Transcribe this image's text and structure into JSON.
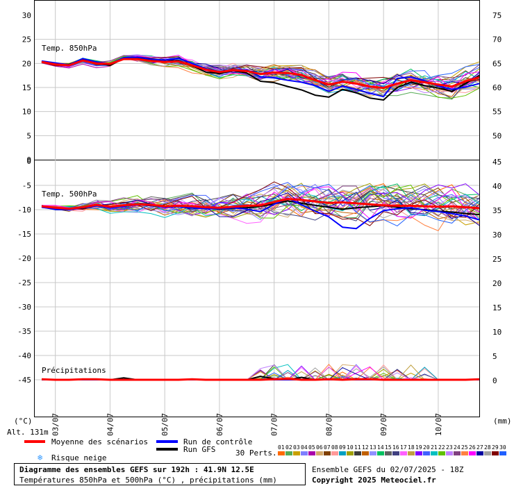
{
  "chart_data": [
    {
      "panel": "850hPa",
      "type": "line",
      "label": "Temp. 850hPa",
      "ylim": [
        0,
        30
      ],
      "yticks_left": [
        "30",
        "25",
        "20",
        "15",
        "10",
        "5",
        "0"
      ],
      "yticks_right": [
        "75",
        "70",
        "65",
        "60",
        "55",
        "50"
      ],
      "x": [
        0,
        6,
        12,
        18,
        24,
        30,
        36,
        42,
        48,
        54,
        60,
        66,
        72,
        78,
        84,
        90,
        96,
        102,
        108,
        114,
        120,
        126,
        132,
        138,
        144,
        150,
        156,
        162,
        168,
        174,
        180,
        186,
        192
      ],
      "series": [
        {
          "name": "Moyenne des scénarios",
          "color": "#ff0000",
          "values": [
            20.3,
            19.8,
            19.6,
            20.6,
            20.0,
            19.9,
            20.9,
            20.9,
            20.5,
            20.3,
            20.4,
            19.6,
            18.7,
            18.2,
            18.6,
            18.4,
            17.8,
            18.1,
            18.0,
            17.6,
            16.5,
            15.6,
            16.2,
            15.8,
            15.2,
            14.9,
            15.8,
            16.5,
            16.1,
            15.6,
            15.2,
            16.3,
            17.1
          ]
        },
        {
          "name": "Run de contrôle",
          "color": "#0000ff",
          "values": [
            20.5,
            20.1,
            19.7,
            21.0,
            20.3,
            19.9,
            21.2,
            21.3,
            20.9,
            20.7,
            21.1,
            20.0,
            18.9,
            18.3,
            18.7,
            18.6,
            17.2,
            17.0,
            16.5,
            16.1,
            15.4,
            14.2,
            15.3,
            14.6,
            13.8,
            13.1,
            16.9,
            17.2,
            16.4,
            15.3,
            14.6,
            15.1,
            15.8
          ]
        },
        {
          "name": "Run GFS",
          "color": "#000000",
          "values": [
            20.4,
            19.9,
            19.8,
            20.8,
            20.1,
            19.6,
            21.0,
            21.1,
            20.7,
            20.4,
            20.6,
            19.5,
            18.2,
            17.9,
            18.5,
            18.0,
            16.3,
            16.0,
            15.2,
            14.5,
            13.4,
            13.0,
            14.6,
            13.9,
            12.8,
            12.4,
            15.0,
            16.1,
            15.4,
            14.9,
            14.2,
            15.8,
            17.5
          ]
        }
      ]
    },
    {
      "panel": "500hPa",
      "type": "line",
      "label": "Temp. 500hPa",
      "ylim": [
        -50,
        0
      ],
      "yticks_left": [
        "0",
        "-5",
        "-10",
        "-15",
        "-20",
        "-25",
        "-30",
        "-35",
        "-40",
        "-45"
      ],
      "yticks_right": [
        "45",
        "40",
        "35",
        "30",
        "25",
        "20",
        "15",
        "10",
        "5",
        "0"
      ],
      "x": [
        0,
        6,
        12,
        18,
        24,
        30,
        36,
        42,
        48,
        54,
        60,
        66,
        72,
        78,
        84,
        90,
        96,
        102,
        108,
        114,
        120,
        126,
        132,
        138,
        144,
        150,
        156,
        162,
        168,
        174,
        180,
        186,
        192
      ],
      "series": [
        {
          "name": "Moyenne des scénarios",
          "color": "#ff0000",
          "values": [
            -9.3,
            -9.6,
            -9.8,
            -9.5,
            -9.0,
            -9.4,
            -9.1,
            -8.9,
            -9.0,
            -9.3,
            -9.2,
            -9.3,
            -9.5,
            -9.6,
            -9.4,
            -9.2,
            -9.1,
            -8.4,
            -7.8,
            -8.0,
            -8.3,
            -8.6,
            -8.5,
            -8.7,
            -8.9,
            -9.1,
            -9.2,
            -9.2,
            -9.3,
            -9.4,
            -9.3,
            -9.5,
            -9.7
          ]
        },
        {
          "name": "Run de contrôle",
          "color": "#0000ff",
          "values": [
            -9.5,
            -9.9,
            -10.0,
            -9.6,
            -9.2,
            -9.6,
            -9.3,
            -9.0,
            -9.1,
            -9.5,
            -9.4,
            -9.6,
            -9.8,
            -9.8,
            -9.6,
            -9.9,
            -10.4,
            -8.9,
            -7.6,
            -9.0,
            -10.3,
            -11.5,
            -13.6,
            -13.9,
            -11.8,
            -10.2,
            -9.8,
            -9.6,
            -10.1,
            -10.4,
            -10.8,
            -11.3,
            -12.1
          ]
        },
        {
          "name": "Run GFS",
          "color": "#000000",
          "values": [
            -9.4,
            -9.7,
            -9.9,
            -9.7,
            -9.1,
            -9.5,
            -9.2,
            -8.9,
            -9.2,
            -9.4,
            -9.3,
            -9.4,
            -9.7,
            -9.9,
            -9.7,
            -9.6,
            -9.3,
            -8.8,
            -8.2,
            -8.7,
            -9.1,
            -9.5,
            -9.9,
            -9.6,
            -9.4,
            -9.2,
            -9.5,
            -9.8,
            -10.0,
            -10.3,
            -10.5,
            -10.8,
            -11.0
          ]
        }
      ]
    },
    {
      "panel": "precip",
      "type": "line",
      "label": "Précipitations",
      "unit": "(mm)",
      "x": [
        0,
        6,
        12,
        18,
        24,
        30,
        36,
        42,
        48,
        54,
        60,
        66,
        72,
        78,
        84,
        90,
        96,
        102,
        108,
        114,
        120,
        126,
        132,
        138,
        144,
        150,
        156,
        162,
        168,
        174,
        180,
        186,
        192
      ],
      "series": [
        {
          "name": "Moyenne des scénarios",
          "color": "#ff0000",
          "values": [
            0.1,
            0,
            0,
            0.1,
            0.1,
            0,
            0,
            0,
            0,
            0,
            0,
            0.1,
            0,
            0,
            0,
            0,
            0,
            0.1,
            0.2,
            0,
            0,
            0.1,
            0,
            0.1,
            0.1,
            0,
            0,
            0,
            0,
            0,
            0,
            0,
            0.1
          ]
        },
        {
          "name": "Run de contrôle",
          "color": "#0000ff",
          "values": [
            0,
            0,
            0,
            0,
            0,
            0,
            0,
            0,
            0,
            0,
            0,
            0,
            0,
            0,
            0,
            0,
            0,
            0,
            0,
            0,
            0,
            0,
            0,
            0,
            0,
            0,
            0,
            0,
            0,
            0,
            0,
            0,
            0
          ]
        },
        {
          "name": "Run GFS",
          "color": "#000000",
          "values": [
            0,
            0,
            0,
            0,
            0,
            0,
            0.4,
            0,
            0,
            0,
            0,
            0,
            0,
            0,
            0,
            0,
            0.7,
            0.2,
            0,
            0.5,
            0,
            0,
            0,
            0,
            0,
            0,
            0,
            0,
            0,
            0,
            0,
            0,
            0
          ]
        }
      ]
    }
  ],
  "x_labels": [
    "03/07",
    "04/07",
    "05/07",
    "06/07",
    "07/07",
    "08/07",
    "09/07",
    "10/07"
  ],
  "axes": {
    "left_unit": "(°C)",
    "right_unit": "(mm)",
    "altitude": "Alt. 131m"
  },
  "legend": {
    "mean": "Moyenne des scénarios",
    "control": "Run de contrôle",
    "gfs": "Run GFS",
    "snow": "Risque neige",
    "perts": "30 Perts.",
    "pert_numbers": [
      "01",
      "02",
      "03",
      "04",
      "05",
      "06",
      "07",
      "08",
      "09",
      "10",
      "11",
      "12",
      "13",
      "14",
      "15",
      "16",
      "17",
      "18",
      "19",
      "20",
      "21",
      "22",
      "23",
      "24",
      "25",
      "26",
      "27",
      "28",
      "29",
      "30"
    ],
    "pert_colors": [
      "#ff6a00",
      "#55aa55",
      "#c8a000",
      "#7f7fff",
      "#aa00aa",
      "#d4a96a",
      "#804000",
      "#ff9999",
      "#00a0c0",
      "#a0a000",
      "#3b3b3b",
      "#c06000",
      "#9090ff",
      "#00c060",
      "#606060",
      "#404080",
      "#ff60ff",
      "#c0a040",
      "#8000ff",
      "#4060ff",
      "#00c0c0",
      "#60c000",
      "#c080ff",
      "#804080",
      "#ff8040",
      "#ff00ff",
      "#0000a0",
      "#a0a0a0",
      "#800000",
      "#2060ff"
    ]
  },
  "title": {
    "line1": "Diagramme des ensembles GEFS sur 192h : 41.9N 12.5E",
    "line2": "Températures 850hPa et 500hPa (°C) , précipitations (mm)"
  },
  "credit": {
    "run": "Ensemble GEFS du 02/07/2025 - 18Z",
    "copyright": "Copyright 2025 Meteociel.fr"
  }
}
